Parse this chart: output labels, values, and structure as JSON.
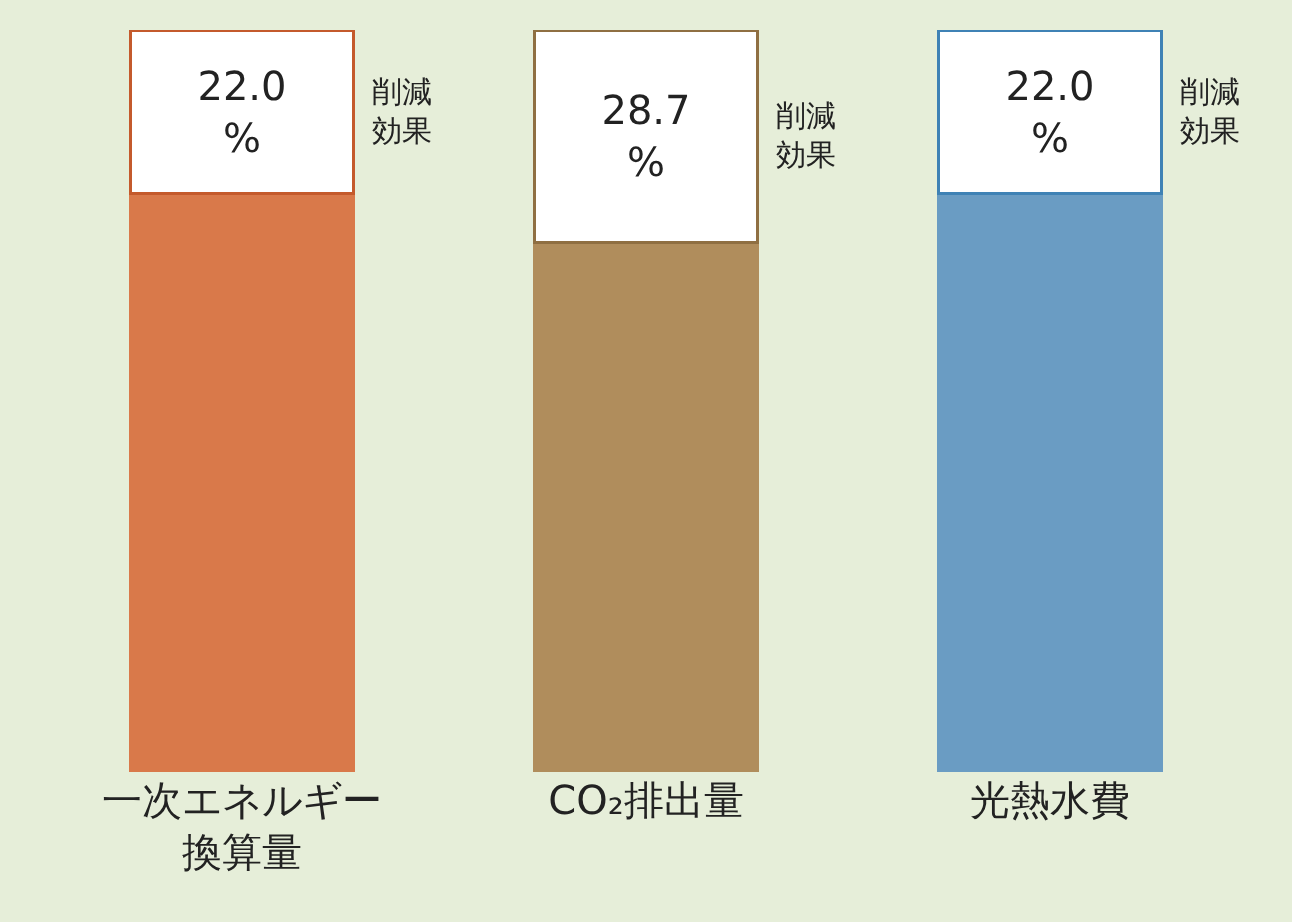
{
  "chart_data": {
    "type": "bar",
    "stacked": true,
    "ylim": [
      0,
      100
    ],
    "tick_labels": "x",
    "categories": [
      "一次エネルギー換算量",
      "CO₂排出量",
      "光熱水費"
    ],
    "series": [
      {
        "colors": [
          "#d9794a",
          "#b08d5c",
          "#6a9cc3"
        ],
        "values": [
          78.0,
          71.3,
          78.0
        ]
      },
      {
        "color": "#ffffff",
        "values": [
          22.0,
          28.7,
          22.0
        ],
        "value_labels": [
          "22.0 %",
          "28.7 %",
          "22.0 %"
        ]
      }
    ],
    "annotations": [
      "削減効果",
      "削減効果",
      "削減効果"
    ]
  }
}
